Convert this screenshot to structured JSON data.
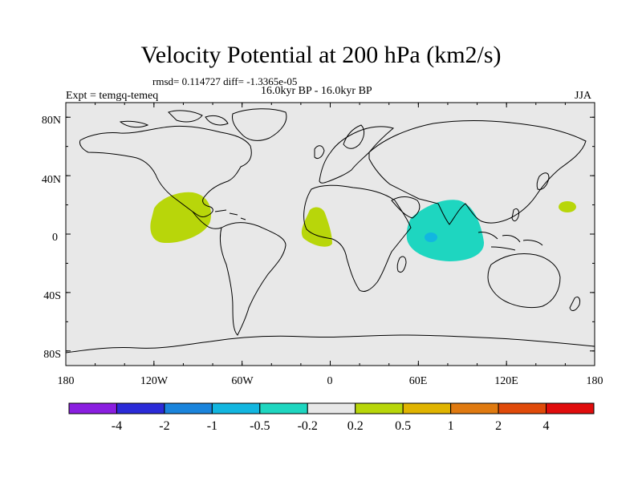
{
  "title": "Velocity Potential at 200 hPa (km2/s)",
  "stats_line": "rmsd= 0.114727 diff= -1.3365e-05",
  "left_label": "Expt = temgq-temeq",
  "center_label": "16.0kyr BP - 16.0kyr BP",
  "right_label": "JJA",
  "y_axis_labels": [
    "80N",
    "40N",
    "0",
    "40S",
    "80S"
  ],
  "x_axis_labels": [
    "180",
    "120W",
    "60W",
    "0",
    "60E",
    "120E",
    "180"
  ],
  "colorbar": {
    "labels": [
      "-4",
      "-2",
      "-1",
      "-0.5",
      "-0.2",
      "0.2",
      "0.5",
      "1",
      "2",
      "4"
    ],
    "colors": [
      "#8a1ee0",
      "#2b2bd8",
      "#1a84dc",
      "#12b6e0",
      "#1ed6c0",
      "#e8e8e8",
      "#b8d60a",
      "#e0b400",
      "#e07a10",
      "#e04a0a",
      "#e00c0c"
    ]
  },
  "map_colors": {
    "ocean": "#e8e8e8",
    "positive": "#b8d60a",
    "negative": "#1ed6c0",
    "strong_negative": "#12b6e0",
    "coast": "#000000"
  }
}
